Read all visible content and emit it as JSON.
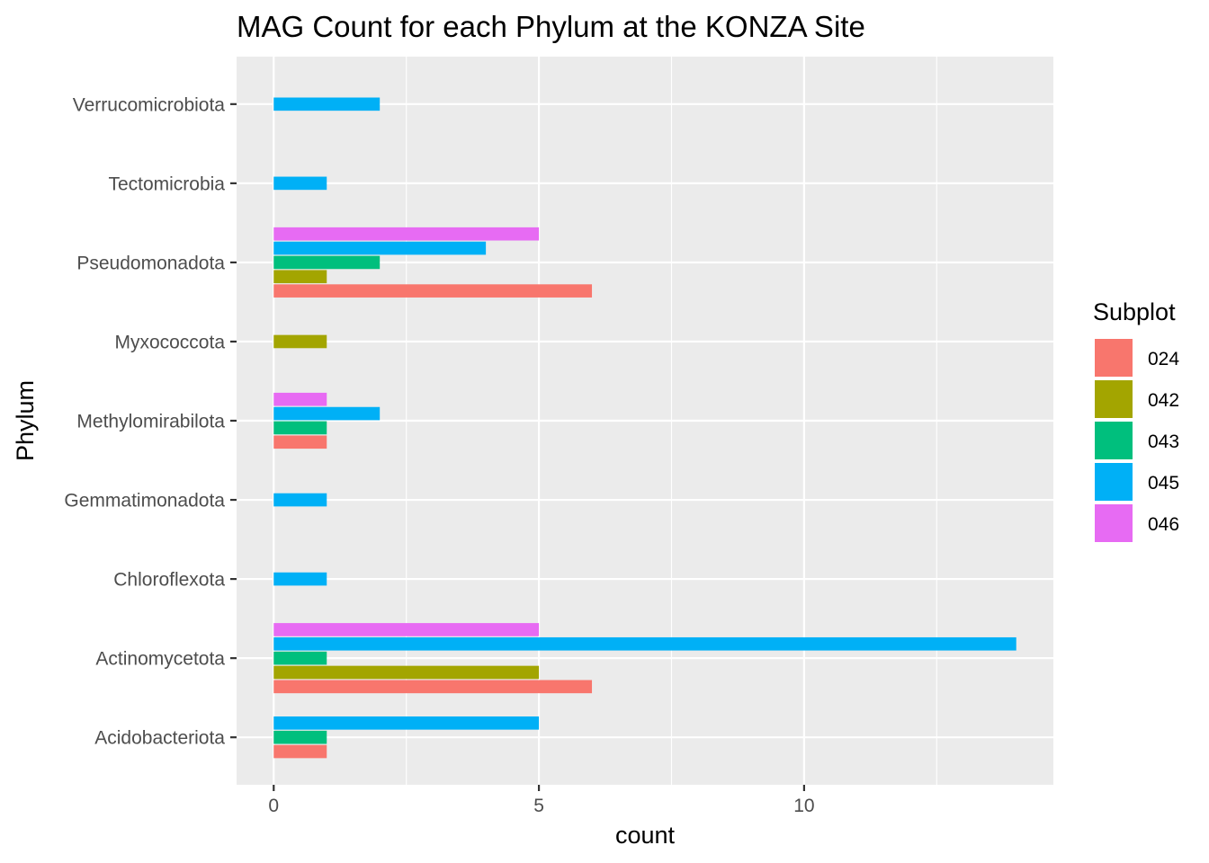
{
  "chart_data": {
    "type": "bar",
    "orientation": "horizontal",
    "title": "MAG Count for each Phylum at the KONZA Site",
    "xlabel": "count",
    "ylabel": "Phylum",
    "xlim": [
      -0.7,
      14.7
    ],
    "x_ticks": [
      0,
      5,
      10
    ],
    "grid": true,
    "legend": {
      "title": "Subplot",
      "position": "right"
    },
    "categories": [
      "Acidobacteriota",
      "Actinomycetota",
      "Chloroflexota",
      "Gemmatimonadota",
      "Methylomirabilota",
      "Myxococcota",
      "Pseudomonadota",
      "Tectomicrobia",
      "Verrucomicrobiota"
    ],
    "series": [
      {
        "name": "024",
        "color": "#F8766D",
        "values": [
          1,
          6,
          null,
          null,
          1,
          null,
          6,
          null,
          null
        ]
      },
      {
        "name": "042",
        "color": "#A3A500",
        "values": [
          null,
          5,
          null,
          null,
          null,
          1,
          1,
          null,
          null
        ]
      },
      {
        "name": "043",
        "color": "#00BF7D",
        "values": [
          1,
          1,
          null,
          null,
          1,
          null,
          2,
          null,
          null
        ]
      },
      {
        "name": "045",
        "color": "#00B0F6",
        "values": [
          5,
          14,
          1,
          1,
          2,
          null,
          4,
          1,
          2
        ]
      },
      {
        "name": "046",
        "color": "#E76BF3",
        "values": [
          null,
          5,
          null,
          null,
          1,
          null,
          5,
          null,
          null
        ]
      }
    ]
  }
}
